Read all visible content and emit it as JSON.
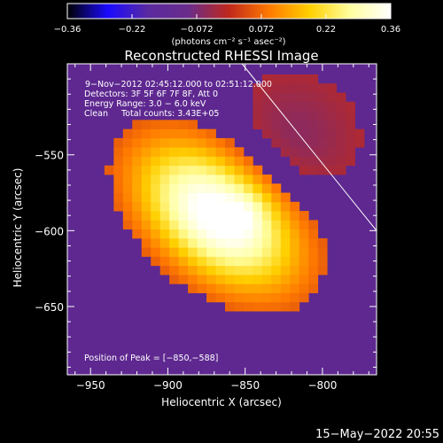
{
  "chart_data": {
    "type": "heatmap",
    "title": "Reconstructed RHESSI Image",
    "xlabel": "Heliocentric X (arcsec)",
    "ylabel": "Heliocentric Y (arcsec)",
    "xlim": [
      -965,
      -765
    ],
    "ylim": [
      -695,
      -490
    ],
    "x_ticks": [
      "−950",
      "−900",
      "−850",
      "−800"
    ],
    "x_tick_values": [
      -950,
      -900,
      -850,
      -800
    ],
    "y_ticks": [
      "−550",
      "−600",
      "−650"
    ],
    "y_tick_values": [
      -550,
      -600,
      -650
    ],
    "colorbar": {
      "ticks": [
        "−0.36",
        "−0.22",
        "−0.072",
        "0.072",
        "0.22",
        "0.36"
      ],
      "range": [
        -0.36,
        0.36
      ],
      "units": "(photons cm⁻² s⁻¹ asec⁻²)",
      "colormap": [
        "#000000",
        "#1a0aff",
        "#5a2aa0",
        "#6a2c8a",
        "#c0281c",
        "#ff7a00",
        "#ffd000",
        "#ffffa0",
        "#ffffff"
      ]
    },
    "annotations": [
      "9−Nov−2012 02:45:12.000 to 02:51:12.000",
      "Detectors: 3F 5F 6F 7F 8F, Att 0",
      "Energy Range: 3.0 − 6.0 keV",
      "Clean     Total counts: 3.43E+05"
    ],
    "peak_label": "Position of Peak = [−850,−588]",
    "peak": {
      "x": -850,
      "y": -588,
      "value": 0.36
    },
    "source_core": {
      "x": -868,
      "y": -590,
      "major_axis_deg": -40
    },
    "limb_line": [
      [
        -852,
        -490
      ],
      [
        -765,
        -600
      ]
    ],
    "background_value": 0.0,
    "grid": false
  },
  "footer": {
    "date": "15−May−2022 20:55"
  }
}
